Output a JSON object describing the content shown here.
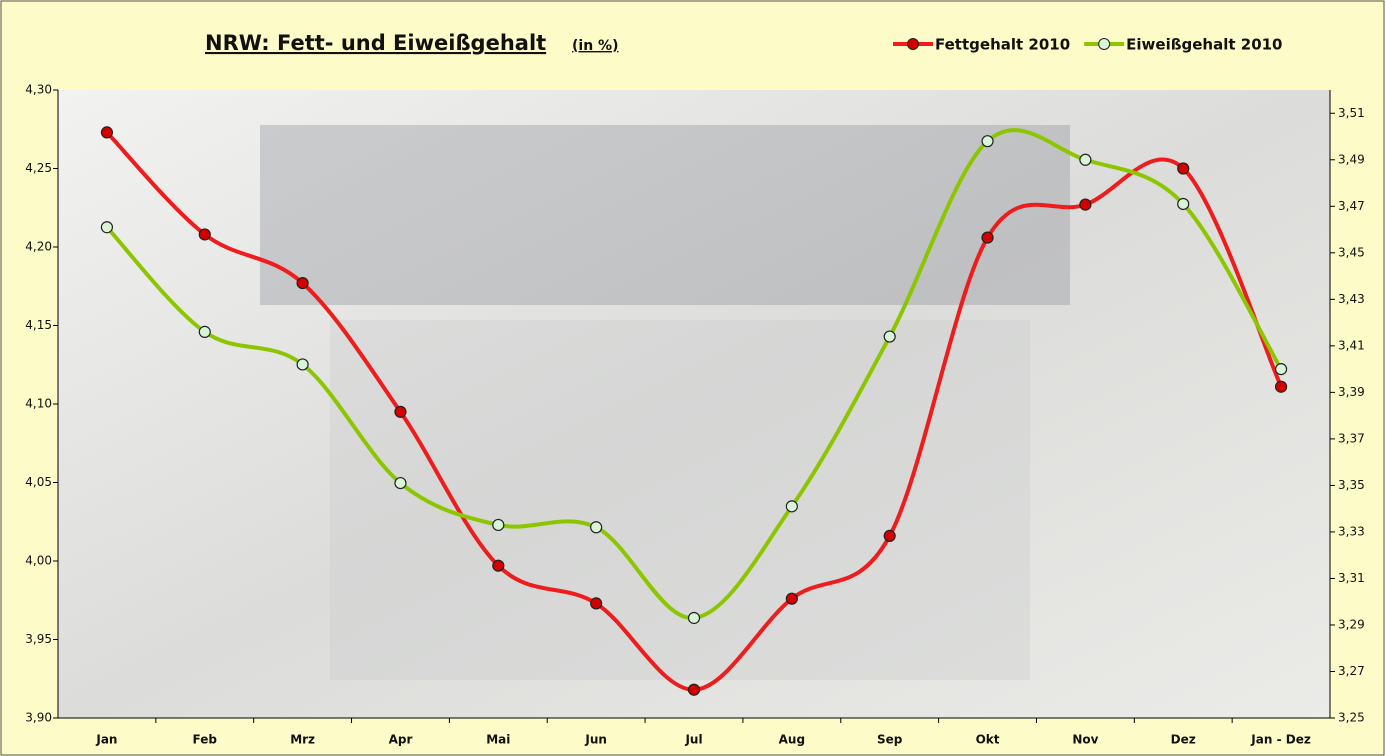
{
  "chart_data": {
    "type": "line",
    "title": "NRW: Fett- und Eiweißgehalt",
    "title_unit": "(in %)",
    "categories": [
      "Jan",
      "Feb",
      "Mrz",
      "Apr",
      "Mai",
      "Jun",
      "Jul",
      "Aug",
      "Sep",
      "Okt",
      "Nov",
      "Dez",
      "Jan - Dez"
    ],
    "series": [
      {
        "name": "Fettgehalt 2010",
        "color": "#ee1c1c",
        "marker_color": "#d40000",
        "values": [
          4.273,
          4.208,
          4.177,
          4.095,
          3.997,
          3.973,
          3.918,
          3.976,
          4.016,
          4.206,
          4.227,
          4.25,
          4.111
        ]
      },
      {
        "name": "Eiweißgehalt 2010",
        "color": "#8cc600",
        "marker_color": "#d8f5d8",
        "axis": "y2",
        "values": [
          3.461,
          3.416,
          3.402,
          3.351,
          3.333,
          3.332,
          3.293,
          3.341,
          3.414,
          3.498,
          3.49,
          3.471,
          3.4
        ]
      }
    ],
    "ylim": [
      3.9,
      4.3
    ],
    "yticks": [
      {
        "value": 3.9,
        "label": "3,90"
      },
      {
        "value": 3.95,
        "label": "3,95"
      },
      {
        "value": 4.0,
        "label": "4,00"
      },
      {
        "value": 4.05,
        "label": "4,05"
      },
      {
        "value": 4.1,
        "label": "4,10"
      },
      {
        "value": 4.15,
        "label": "4,15"
      },
      {
        "value": 4.2,
        "label": "4,20"
      },
      {
        "value": 4.25,
        "label": "4,25"
      },
      {
        "value": 4.3,
        "label": "4,30"
      }
    ],
    "y2lim": [
      3.25,
      3.52
    ],
    "y2ticks": [
      {
        "value": 3.25,
        "label": "3,25"
      },
      {
        "value": 3.27,
        "label": "3,27"
      },
      {
        "value": 3.29,
        "label": "3,29"
      },
      {
        "value": 3.31,
        "label": "3,31"
      },
      {
        "value": 3.33,
        "label": "3,33"
      },
      {
        "value": 3.35,
        "label": "3,35"
      },
      {
        "value": 3.37,
        "label": "3,37"
      },
      {
        "value": 3.39,
        "label": "3,39"
      },
      {
        "value": 3.41,
        "label": "3,41"
      },
      {
        "value": 3.43,
        "label": "3,43"
      },
      {
        "value": 3.45,
        "label": "3,45"
      },
      {
        "value": 3.47,
        "label": "3,47"
      },
      {
        "value": 3.49,
        "label": "3,49"
      },
      {
        "value": 3.51,
        "label": "3,51"
      }
    ],
    "legend": "top-right"
  }
}
